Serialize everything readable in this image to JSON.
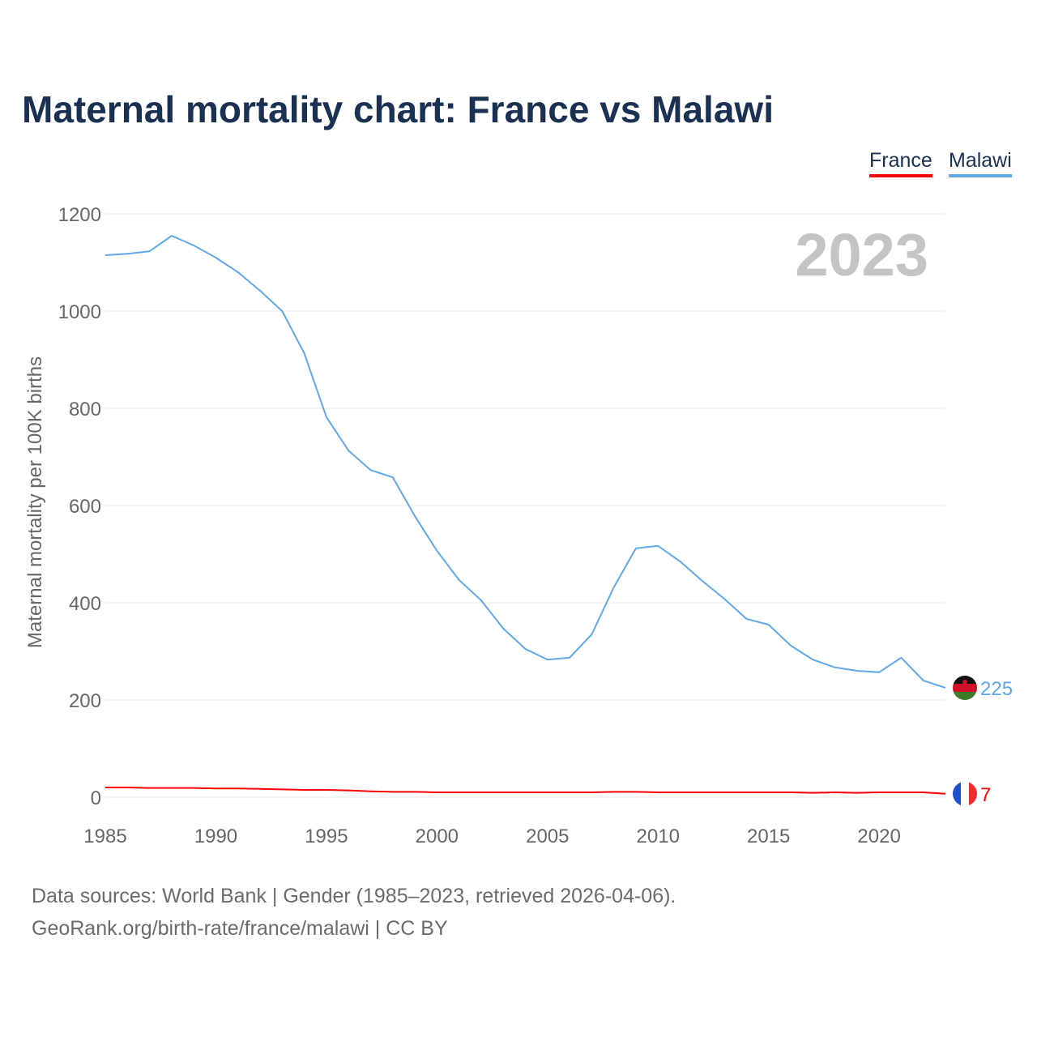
{
  "title": "Maternal mortality chart: France vs Malawi",
  "footer": {
    "line1": "Data sources: World Bank | Gender (1985–2023, retrieved 2026-04-06).",
    "line2": "GeoRank.org/birth-rate/france/malawi | CC BY"
  },
  "chart_data": {
    "type": "line",
    "title": "Maternal mortality chart: France vs Malawi",
    "xlabel": "",
    "ylabel": "Maternal mortality per 100K births",
    "year_label": "2023",
    "xlim": [
      1985,
      2023
    ],
    "ylim": [
      0,
      1200
    ],
    "x_ticks": [
      "1985",
      "1990",
      "1995",
      "2000",
      "2005",
      "2010",
      "2015",
      "2020"
    ],
    "y_ticks": [
      "0",
      "200",
      "400",
      "600",
      "800",
      "1000",
      "1200"
    ],
    "grid": true,
    "legend_position": "top-right",
    "x": [
      1985,
      1986,
      1987,
      1988,
      1989,
      1990,
      1991,
      1992,
      1993,
      1994,
      1995,
      1996,
      1997,
      1998,
      1999,
      2000,
      2001,
      2002,
      2003,
      2004,
      2005,
      2006,
      2007,
      2008,
      2009,
      2010,
      2011,
      2012,
      2013,
      2014,
      2015,
      2016,
      2017,
      2018,
      2019,
      2020,
      2021,
      2022,
      2023
    ],
    "series": [
      {
        "name": "France",
        "color": "#ff0000",
        "end_label": "7",
        "values": [
          20,
          20,
          19,
          19,
          19,
          18,
          18,
          17,
          16,
          15,
          15,
          14,
          12,
          11,
          11,
          10,
          10,
          10,
          10,
          10,
          10,
          10,
          10,
          11,
          11,
          10,
          10,
          10,
          10,
          10,
          10,
          10,
          9,
          10,
          9,
          10,
          10,
          10,
          7
        ]
      },
      {
        "name": "Malawi",
        "color": "#5fa8ea",
        "end_label": "225",
        "values": [
          1115,
          1118,
          1123,
          1155,
          1135,
          1110,
          1080,
          1042,
          1000,
          913,
          782,
          713,
          673,
          658,
          578,
          507,
          447,
          405,
          347,
          305,
          283,
          287,
          335,
          432,
          512,
          517,
          485,
          445,
          408,
          367,
          355,
          312,
          283,
          267,
          260,
          257,
          287,
          240,
          225
        ]
      }
    ]
  }
}
